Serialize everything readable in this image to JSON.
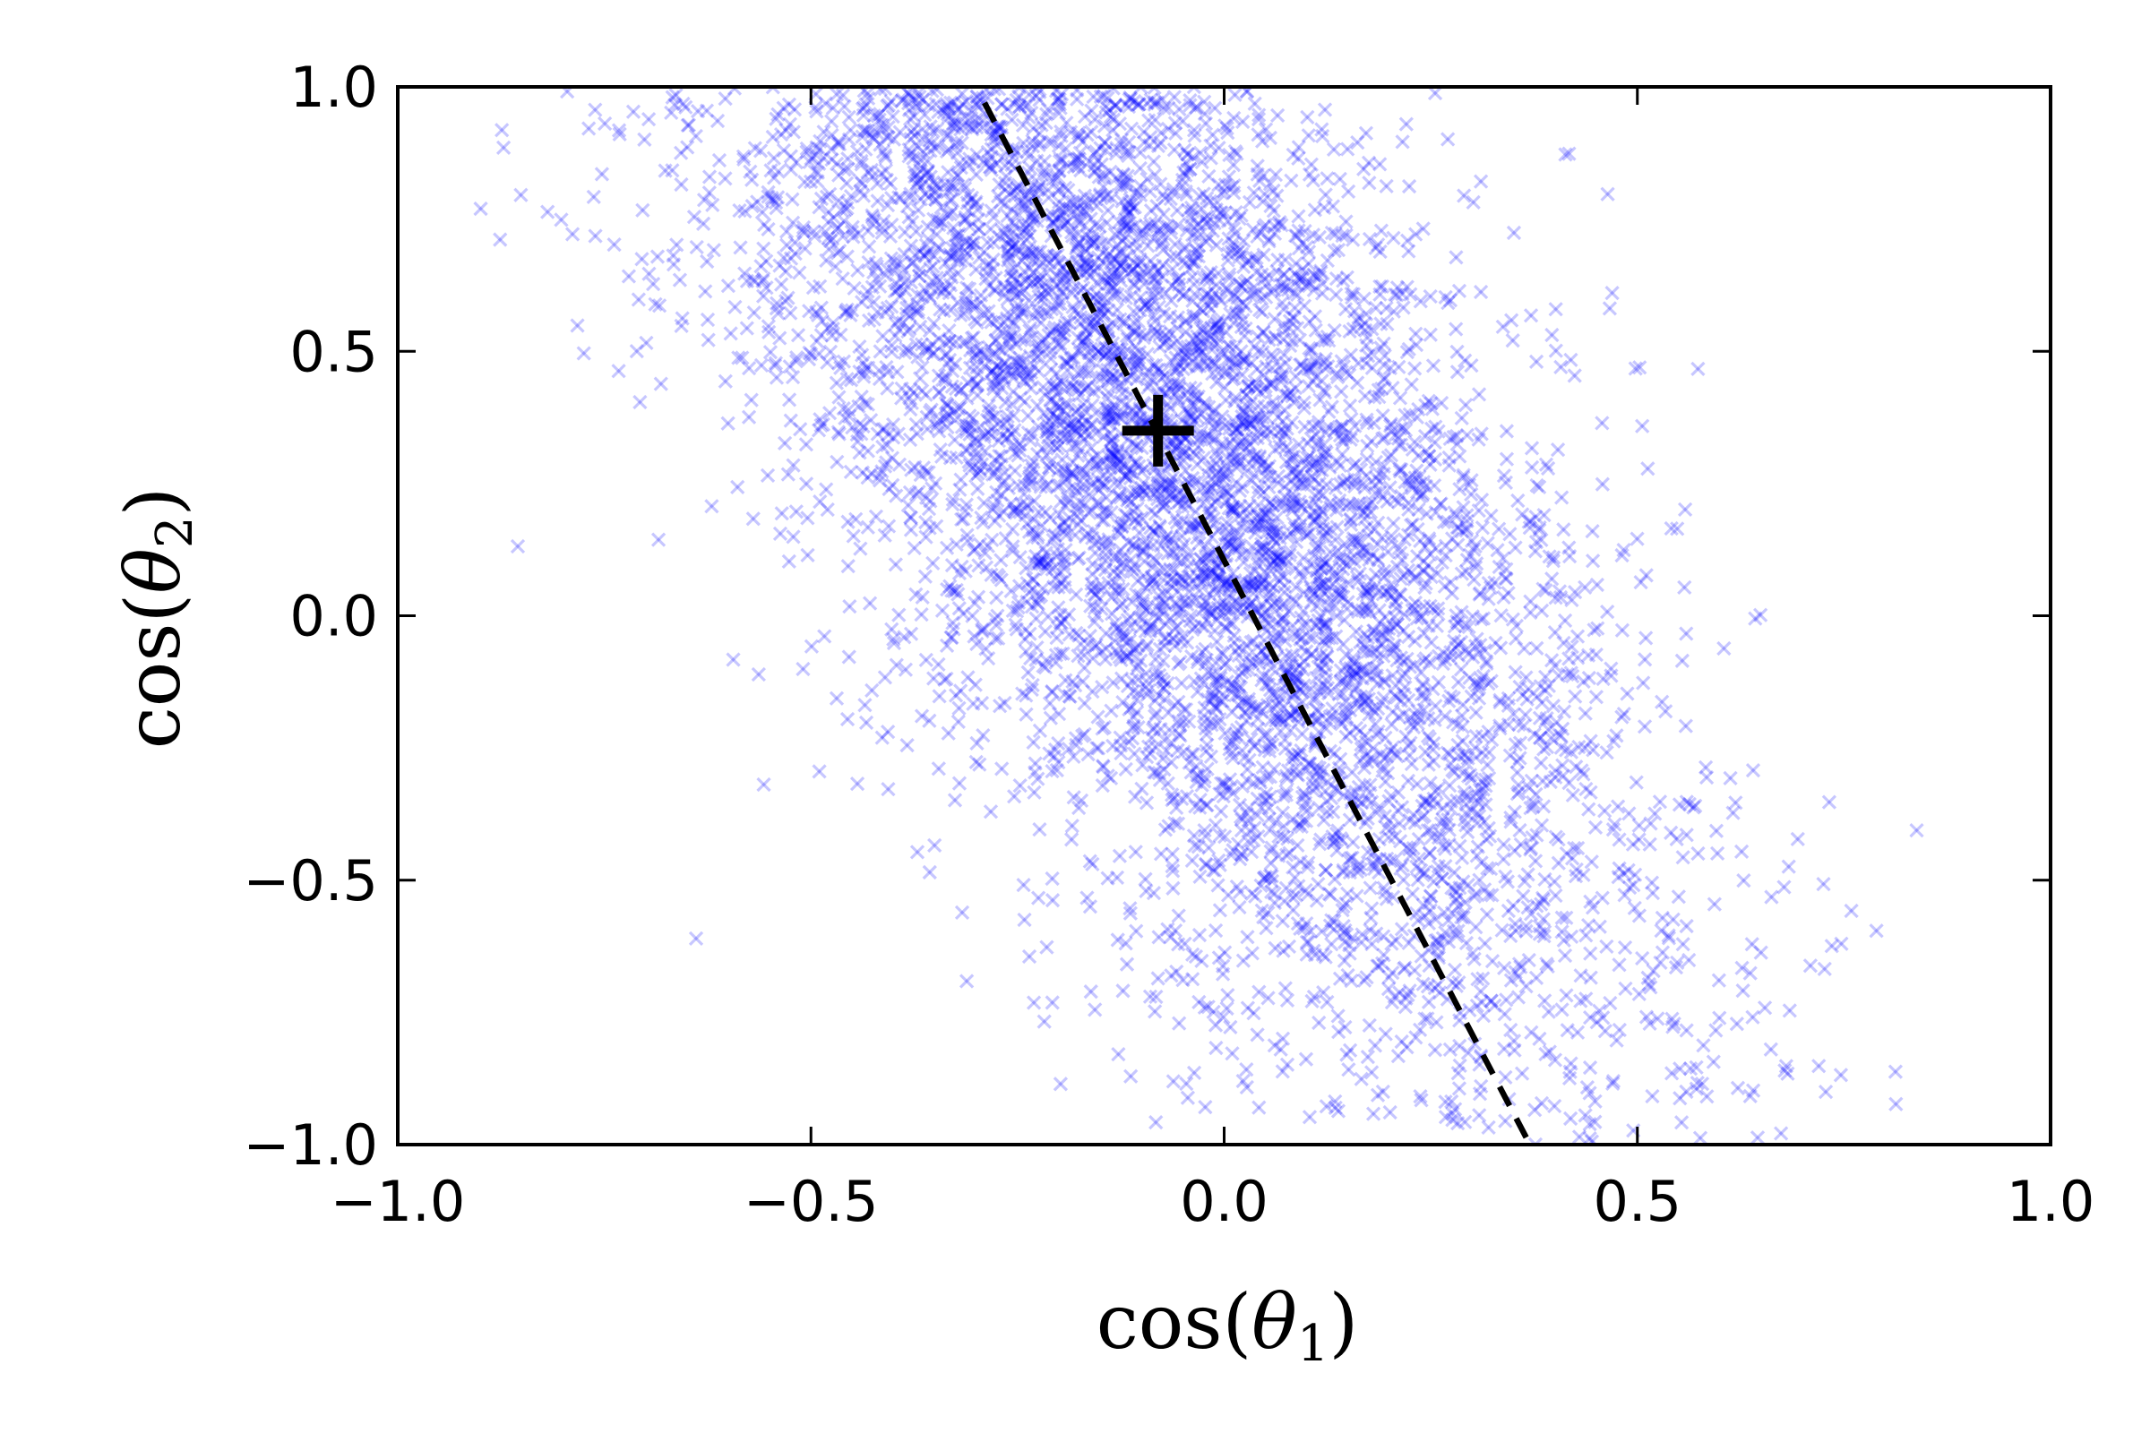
{
  "chart_data": {
    "type": "scatter",
    "title": "",
    "xlabel": {
      "prefix": "cos(",
      "symbol": "θ",
      "subscript": "1",
      "suffix": ")"
    },
    "ylabel": {
      "prefix": "cos(",
      "symbol": "θ",
      "subscript": "2",
      "suffix": ")"
    },
    "xlim": [
      -1.0,
      1.0
    ],
    "ylim": [
      -1.0,
      1.0
    ],
    "x_ticks": [
      -1.0,
      -0.5,
      0.0,
      0.5,
      1.0
    ],
    "y_ticks": [
      -1.0,
      -0.5,
      0.0,
      0.5,
      1.0
    ],
    "x_tick_labels": [
      "−1.0",
      "−0.5",
      "0.0",
      "0.5",
      "1.0"
    ],
    "y_tick_labels": [
      "−1.0",
      "−0.5",
      "0.0",
      "0.5",
      "1.0"
    ],
    "grid": false,
    "legend": "none",
    "series": [
      {
        "marker": "x",
        "color": "#0000ff",
        "alpha": 0.22,
        "approx_count": 6000,
        "distribution": {
          "shape": "elongated cloud oriented along the dashed line",
          "center": [
            -0.08,
            0.35
          ],
          "x_extent": [
            -0.98,
            0.93
          ],
          "y_extent": [
            -1.0,
            1.0
          ]
        }
      }
    ],
    "reference_line": {
      "style": "dashed",
      "color": "#000000",
      "from": [
        -0.29,
        0.97
      ],
      "to": [
        0.37,
        -1.0
      ]
    },
    "center_marker": {
      "symbol": "+",
      "color": "#000000",
      "x": -0.08,
      "y": 0.35
    }
  }
}
